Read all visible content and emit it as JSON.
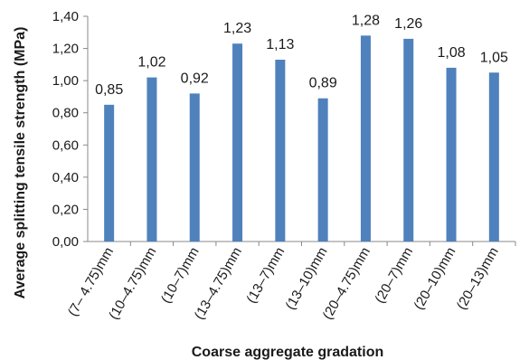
{
  "chart_data": {
    "type": "bar",
    "title": "",
    "xlabel": "Coarse aggregate gradation",
    "ylabel": "Average splitting tensile strength (MPa)",
    "ylim": [
      0,
      1.4
    ],
    "yticks": [
      "0,00",
      "0,20",
      "0,40",
      "0,60",
      "0,80",
      "1,00",
      "1,20",
      "1,40"
    ],
    "grid": false,
    "categories": [
      "(7– 4.75)mm",
      "(10–4.75)mm",
      "(10–7)mm",
      "(13–4.75)mm",
      "(13–7)mm",
      "(13–10)mm",
      "(20–4.75)mm",
      "(20–7)mm",
      "(20–10)mm",
      "(20–13)mm"
    ],
    "values": [
      0.85,
      1.02,
      0.92,
      1.23,
      1.13,
      0.89,
      1.28,
      1.26,
      1.08,
      1.05
    ],
    "value_labels": [
      "0,85",
      "1,02",
      "0,92",
      "1,23",
      "1,13",
      "0,89",
      "1,28",
      "1,26",
      "1,08",
      "1,05"
    ],
    "bar_color": "#4F81BD",
    "axis_color": "#888888"
  }
}
